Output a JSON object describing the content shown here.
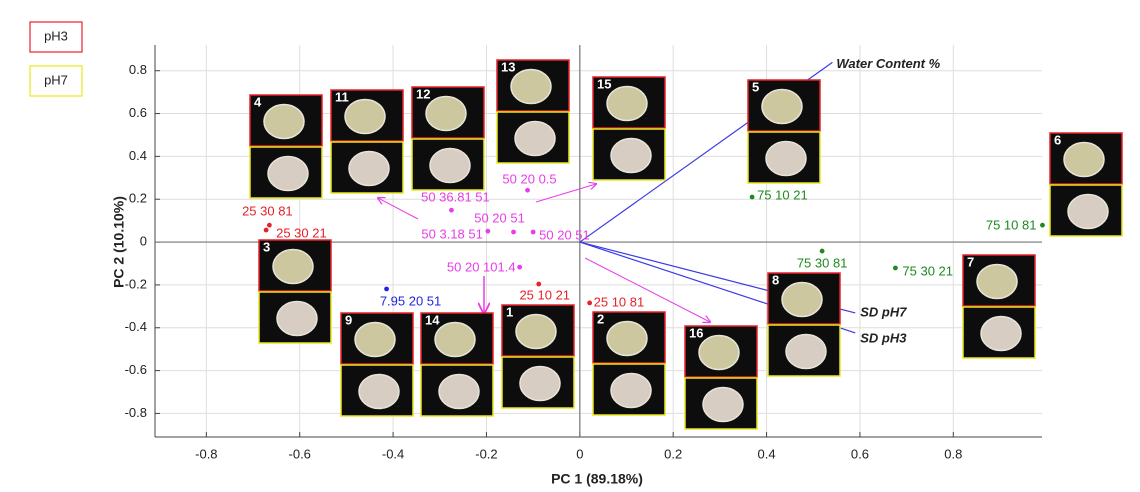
{
  "chart_data": {
    "type": "scatter",
    "xlabel": "PC 1 (89.18%)",
    "ylabel": "PC 2 (10.10%)",
    "xlim": [
      -0.91,
      0.99
    ],
    "ylim": [
      -0.91,
      0.92
    ],
    "xticks": [
      -0.8,
      -0.6,
      -0.4,
      -0.2,
      0,
      0.2,
      0.4,
      0.6,
      0.8
    ],
    "yticks": [
      -0.8,
      -0.6,
      -0.4,
      -0.2,
      0,
      0.2,
      0.4,
      0.6,
      0.8
    ],
    "grid": true,
    "series": [
      {
        "color": "#e8202a",
        "x": [
          -0.665,
          -0.672,
          -0.088,
          0.021
        ],
        "values": [
          0.079,
          0.056,
          -0.196,
          -0.284
        ],
        "point_labels": [
          "25 30 81",
          "25 30 21",
          "25 10 21",
          "25 10 81"
        ]
      },
      {
        "color": "#e83ee8",
        "x": [
          -0.275,
          -0.112,
          -0.197,
          -0.142,
          -0.1,
          -0.129
        ],
        "values": [
          0.149,
          0.242,
          0.051,
          0.047,
          0.047,
          -0.117
        ],
        "point_labels": [
          "50 36.81 51",
          "50 20 0.5",
          "50 3.18 51",
          "50 20 51",
          "50 20 51",
          "50 20 101.4"
        ]
      },
      {
        "color": "#2424e0",
        "x": [
          -0.414
        ],
        "values": [
          -0.219
        ],
        "point_labels": [
          "7.95 20 51"
        ]
      },
      {
        "color": "#1e8a1e",
        "x": [
          0.369,
          0.519,
          0.676,
          0.991
        ],
        "values": [
          0.21,
          -0.042,
          -0.121,
          0.079
        ],
        "point_labels": [
          "75 10 21",
          "75 30 81",
          "75 30 21",
          "75 10 81"
        ]
      }
    ],
    "vectors": {
      "color": "#3a3ae8",
      "labels": [
        "Water Content %",
        "SD pH7",
        "SD pH3"
      ],
      "x": [
        0.541,
        0.59,
        0.59
      ],
      "values": [
        0.839,
        -0.331,
        -0.424
      ]
    },
    "legend": [
      {
        "name": "pH3",
        "color": "#e8202a"
      },
      {
        "name": "pH7",
        "color": "#e8e820"
      }
    ],
    "thumbnails": [
      "4",
      "11",
      "12",
      "13",
      "15",
      "5",
      "6",
      "3",
      "9",
      "14",
      "1",
      "2",
      "16",
      "8",
      "7"
    ]
  }
}
